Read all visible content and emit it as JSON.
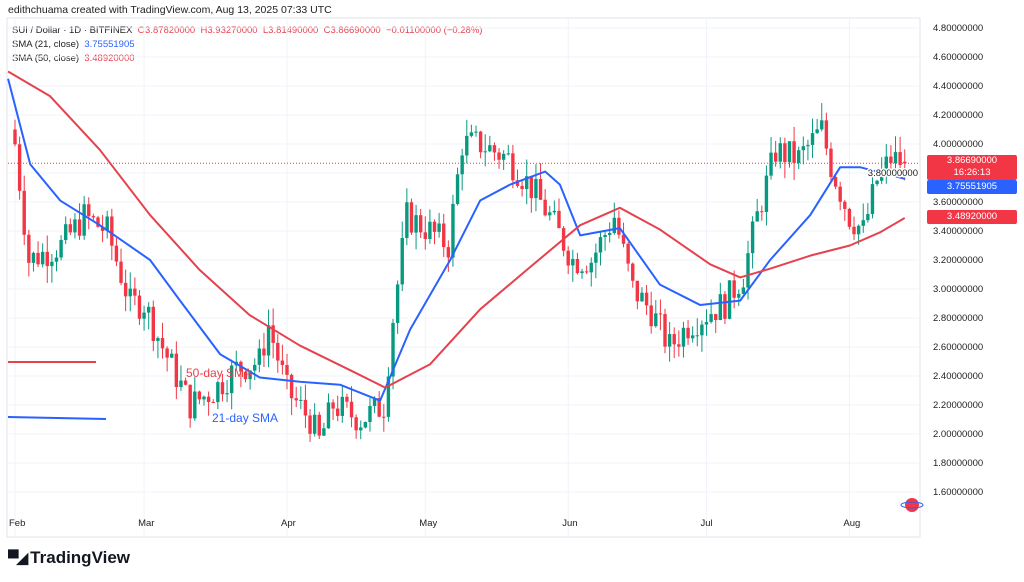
{
  "header": {
    "credit": "edithchuama created with TradingView.com, Aug 13, 2025 07:33 UTC"
  },
  "legend": {
    "symbol": "SUI / Dollar · 1D · BITFINEX",
    "o": "O3.87820000",
    "h": "H3.93270000",
    "l": "L3.81490000",
    "c": "C3.86690000",
    "chg": "−0.01100000 (−0.28%)",
    "sma21_label": "SMA (21, close)",
    "sma21_value": "3.75551905",
    "sma50_label": "SMA (50, close)",
    "sma50_value": "3.48920000"
  },
  "price_tags": {
    "last": "3.86690000",
    "countdown": "16:26:13",
    "sma21": "3.75551905",
    "sma50": "3.48920000"
  },
  "annotations": {
    "sma50": "50-day SMA",
    "sma21": "21-day SMA"
  },
  "footer": {
    "brand": "TradingView"
  },
  "colors": {
    "up": "#089981",
    "down": "#f23645",
    "sma21": "#2962ff",
    "sma50": "#e5424d"
  },
  "chart_data": {
    "type": "candlestick",
    "title": "SUI / Dollar · 1D · BITFINEX",
    "ylim": [
      1.5,
      4.85
    ],
    "yticks": [
      "4.80000000",
      "4.60000000",
      "4.40000000",
      "4.20000000",
      "4.00000000",
      "3.80000000",
      "3.60000000",
      "3.40000000",
      "3.20000000",
      "3.00000000",
      "2.80000000",
      "2.60000000",
      "2.40000000",
      "2.20000000",
      "2.00000000",
      "1.80000000",
      "1.60000000"
    ],
    "xticks": [
      {
        "label": "Feb",
        "day": 0
      },
      {
        "label": "Mar",
        "day": 28
      },
      {
        "label": "Apr",
        "day": 59
      },
      {
        "label": "May",
        "day": 89
      },
      {
        "label": "Jun",
        "day": 120
      },
      {
        "label": "Jul",
        "day": 150
      },
      {
        "label": "Aug",
        "day": 181
      }
    ],
    "close_path_day_price": [
      [
        0,
        4.0
      ],
      [
        3,
        3.2
      ],
      [
        10,
        3.3
      ],
      [
        15,
        3.5
      ],
      [
        20,
        3.4
      ],
      [
        25,
        2.9
      ],
      [
        28,
        2.9
      ],
      [
        32,
        2.6
      ],
      [
        38,
        2.2
      ],
      [
        43,
        2.3
      ],
      [
        48,
        2.45
      ],
      [
        53,
        2.5
      ],
      [
        55,
        2.75
      ],
      [
        59,
        2.3
      ],
      [
        64,
        2.1
      ],
      [
        66,
        1.95
      ],
      [
        69,
        2.2
      ],
      [
        75,
        2.1
      ],
      [
        80,
        2.2
      ],
      [
        82,
        2.8
      ],
      [
        85,
        3.5
      ],
      [
        90,
        3.4
      ],
      [
        94,
        3.3
      ],
      [
        97,
        4.0
      ],
      [
        101,
        4.0
      ],
      [
        107,
        3.9
      ],
      [
        112,
        3.7
      ],
      [
        116,
        3.5
      ],
      [
        121,
        3.2
      ],
      [
        125,
        3.2
      ],
      [
        130,
        3.5
      ],
      [
        134,
        3.0
      ],
      [
        138,
        2.85
      ],
      [
        142,
        2.6
      ],
      [
        146,
        2.75
      ],
      [
        151,
        2.85
      ],
      [
        154,
        2.9
      ],
      [
        158,
        3.1
      ],
      [
        161,
        3.5
      ],
      [
        165,
        3.95
      ],
      [
        170,
        3.9
      ],
      [
        175,
        4.1
      ],
      [
        177,
        3.85
      ],
      [
        181,
        3.5
      ],
      [
        184,
        3.4
      ],
      [
        187,
        3.75
      ],
      [
        190,
        3.9
      ],
      [
        193,
        3.867
      ]
    ],
    "sma21_day_price": [
      [
        -1.5,
        4.45
      ],
      [
        3.3,
        3.86
      ],
      [
        9.8,
        3.61
      ],
      [
        18.4,
        3.44
      ],
      [
        29.3,
        3.2
      ],
      [
        35.8,
        2.92
      ],
      [
        44.5,
        2.55
      ],
      [
        53.1,
        2.39
      ],
      [
        61.8,
        2.36
      ],
      [
        70.5,
        2.34
      ],
      [
        79.2,
        2.23
      ],
      [
        85.7,
        2.72
      ],
      [
        94.4,
        3.2
      ],
      [
        100.9,
        3.61
      ],
      [
        107.4,
        3.72
      ],
      [
        115,
        3.81
      ],
      [
        118.2,
        3.72
      ],
      [
        122.6,
        3.37
      ],
      [
        131.2,
        3.42
      ],
      [
        139.9,
        3.03
      ],
      [
        148.6,
        2.89
      ],
      [
        157.3,
        2.92
      ],
      [
        163.8,
        3.2
      ],
      [
        172.5,
        3.51
      ],
      [
        179,
        3.84
      ],
      [
        183.3,
        3.84
      ],
      [
        193,
        3.76
      ]
    ],
    "sma50_day_price": [
      [
        -1.5,
        4.5
      ],
      [
        7.6,
        4.33
      ],
      [
        18.4,
        3.96
      ],
      [
        29.3,
        3.51
      ],
      [
        40.1,
        3.13
      ],
      [
        50.9,
        2.82
      ],
      [
        61.8,
        2.61
      ],
      [
        72.7,
        2.44
      ],
      [
        80.3,
        2.32
      ],
      [
        90,
        2.48
      ],
      [
        100.9,
        2.86
      ],
      [
        111.7,
        3.15
      ],
      [
        122.6,
        3.44
      ],
      [
        131.2,
        3.56
      ],
      [
        139.9,
        3.41
      ],
      [
        150.8,
        3.17
      ],
      [
        157.3,
        3.08
      ],
      [
        163.8,
        3.14
      ],
      [
        172.5,
        3.23
      ],
      [
        181.1,
        3.3
      ],
      [
        187.6,
        3.39
      ],
      [
        193,
        3.49
      ]
    ]
  }
}
